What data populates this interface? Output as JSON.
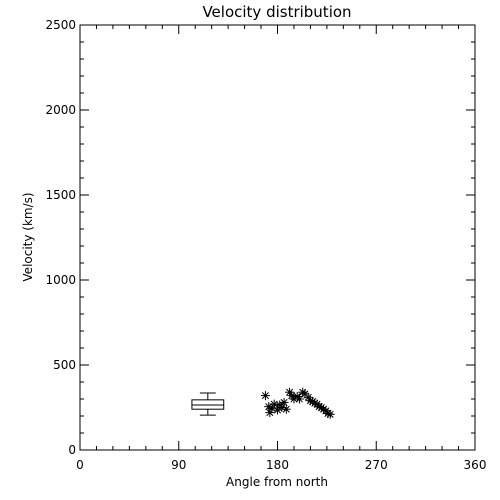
{
  "chart_data": {
    "type": "scatter",
    "title": "Velocity distribution",
    "xlabel": "Angle from north",
    "ylabel": "Velocity (km/s)",
    "xlim": [
      0,
      360
    ],
    "ylim": [
      0,
      2500
    ],
    "xticks": [
      0,
      90,
      180,
      270,
      360
    ],
    "xtick_labels": [
      "0",
      "90",
      "180",
      "270",
      "360"
    ],
    "yticks": [
      0,
      500,
      1000,
      1500,
      2000,
      2500
    ],
    "ytick_labels": [
      "0",
      "500",
      "1000",
      "1500",
      "2000",
      "2500"
    ],
    "grid": false,
    "marker": "asterisk",
    "points": [
      {
        "x": 169,
        "y": 320
      },
      {
        "x": 172,
        "y": 255
      },
      {
        "x": 173,
        "y": 220
      },
      {
        "x": 175,
        "y": 245
      },
      {
        "x": 177,
        "y": 270
      },
      {
        "x": 180,
        "y": 235
      },
      {
        "x": 182,
        "y": 265
      },
      {
        "x": 184,
        "y": 250
      },
      {
        "x": 186,
        "y": 280
      },
      {
        "x": 188,
        "y": 240
      },
      {
        "x": 191,
        "y": 340
      },
      {
        "x": 193,
        "y": 320
      },
      {
        "x": 195,
        "y": 300
      },
      {
        "x": 198,
        "y": 315
      },
      {
        "x": 200,
        "y": 300
      },
      {
        "x": 203,
        "y": 340
      },
      {
        "x": 205,
        "y": 330
      },
      {
        "x": 208,
        "y": 310
      },
      {
        "x": 210,
        "y": 290
      },
      {
        "x": 212,
        "y": 285
      },
      {
        "x": 214,
        "y": 275
      },
      {
        "x": 216,
        "y": 270
      },
      {
        "x": 218,
        "y": 255
      },
      {
        "x": 220,
        "y": 250
      },
      {
        "x": 222,
        "y": 240
      },
      {
        "x": 224,
        "y": 230
      },
      {
        "x": 226,
        "y": 215
      },
      {
        "x": 228,
        "y": 210
      }
    ],
    "boxplot": {
      "x_range": [
        102,
        131
      ],
      "whisker_low": 205,
      "q1": 240,
      "median": 265,
      "q3": 295,
      "whisker_high": 335
    }
  }
}
